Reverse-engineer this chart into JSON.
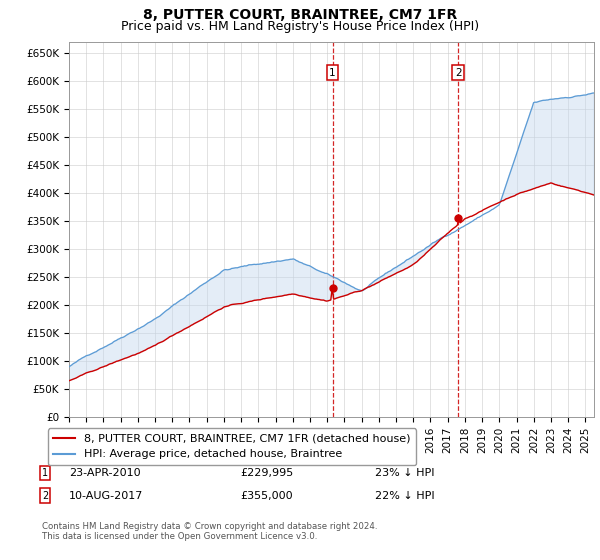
{
  "title": "8, PUTTER COURT, BRAINTREE, CM7 1FR",
  "subtitle": "Price paid vs. HM Land Registry's House Price Index (HPI)",
  "ylabel_ticks": [
    "£0",
    "£50K",
    "£100K",
    "£150K",
    "£200K",
    "£250K",
    "£300K",
    "£350K",
    "£400K",
    "£450K",
    "£500K",
    "£550K",
    "£600K",
    "£650K"
  ],
  "ytick_values": [
    0,
    50000,
    100000,
    150000,
    200000,
    250000,
    300000,
    350000,
    400000,
    450000,
    500000,
    550000,
    600000,
    650000
  ],
  "ylim": [
    0,
    670000
  ],
  "xlim_start": 1995.0,
  "xlim_end": 2025.5,
  "xtick_years": [
    1995,
    1996,
    1997,
    1998,
    1999,
    2000,
    2001,
    2002,
    2003,
    2004,
    2005,
    2006,
    2007,
    2008,
    2009,
    2010,
    2011,
    2012,
    2013,
    2014,
    2015,
    2016,
    2017,
    2018,
    2019,
    2020,
    2021,
    2022,
    2023,
    2024,
    2025
  ],
  "marker1_x": 2010.31,
  "marker1_y": 229995,
  "marker2_x": 2017.61,
  "marker2_y": 355000,
  "marker1_date": "23-APR-2010",
  "marker1_price": "£229,995",
  "marker1_pct": "23% ↓ HPI",
  "marker2_date": "10-AUG-2017",
  "marker2_price": "£355,000",
  "marker2_pct": "22% ↓ HPI",
  "hpi_color": "#5b9bd5",
  "price_color": "#cc0000",
  "marker_box_color": "#cc0000",
  "shade_color": "#c5d9ee",
  "legend_label_price": "8, PUTTER COURT, BRAINTREE, CM7 1FR (detached house)",
  "legend_label_hpi": "HPI: Average price, detached house, Braintree",
  "footer": "Contains HM Land Registry data © Crown copyright and database right 2024.\nThis data is licensed under the Open Government Licence v3.0.",
  "title_fontsize": 10,
  "subtitle_fontsize": 9,
  "tick_fontsize": 7.5,
  "legend_fontsize": 8
}
